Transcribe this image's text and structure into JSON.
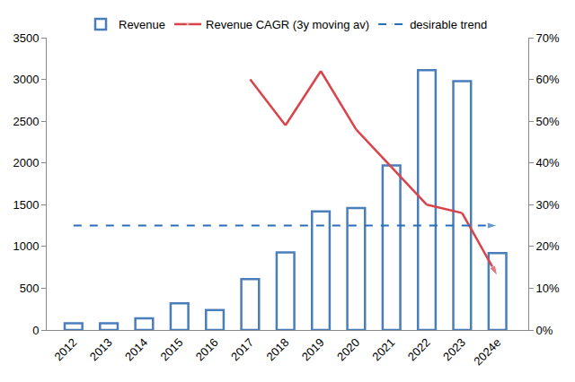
{
  "chart_data": {
    "type": "bar",
    "categories": [
      "2012",
      "2013",
      "2014",
      "2015",
      "2016",
      "2017",
      "2018",
      "2019",
      "2020",
      "2021",
      "2022",
      "2023",
      "2024e"
    ],
    "series": [
      {
        "name": "Revenue",
        "type": "bar",
        "color": "#4a7ebb",
        "values": [
          80,
          80,
          140,
          320,
          240,
          610,
          930,
          1420,
          1460,
          1970,
          3110,
          2980,
          920
        ]
      },
      {
        "name": "Revenue CAGR (3y moving av)",
        "type": "line",
        "axis": "y2",
        "color": "#d9434a",
        "marker": "arrow",
        "line_style": "solid",
        "values": [
          null,
          null,
          null,
          null,
          null,
          60,
          49,
          62,
          48,
          39,
          30,
          28,
          13
        ]
      },
      {
        "name": "desirable trend",
        "type": "line",
        "axis": "y2",
        "color": "#2a6ebb",
        "marker": "arrow",
        "line_style": "dashed",
        "values": [
          25,
          25,
          25,
          25,
          25,
          25,
          25,
          25,
          25,
          25,
          25,
          25,
          25
        ]
      }
    ],
    "ylim": [
      0,
      3500
    ],
    "yticks": [
      0,
      500,
      1000,
      1500,
      2000,
      2500,
      3000,
      3500
    ],
    "y2lim": [
      0,
      70
    ],
    "y2ticks": [
      {
        "value": 0,
        "label": "0%"
      },
      {
        "value": 10,
        "label": "10%"
      },
      {
        "value": 20,
        "label": "20%"
      },
      {
        "value": 30,
        "label": "30%"
      },
      {
        "value": 40,
        "label": "40%"
      },
      {
        "value": 50,
        "label": "50%"
      },
      {
        "value": 60,
        "label": "60%"
      },
      {
        "value": 70,
        "label": "70%"
      }
    ],
    "grid": false,
    "legend": "top"
  }
}
